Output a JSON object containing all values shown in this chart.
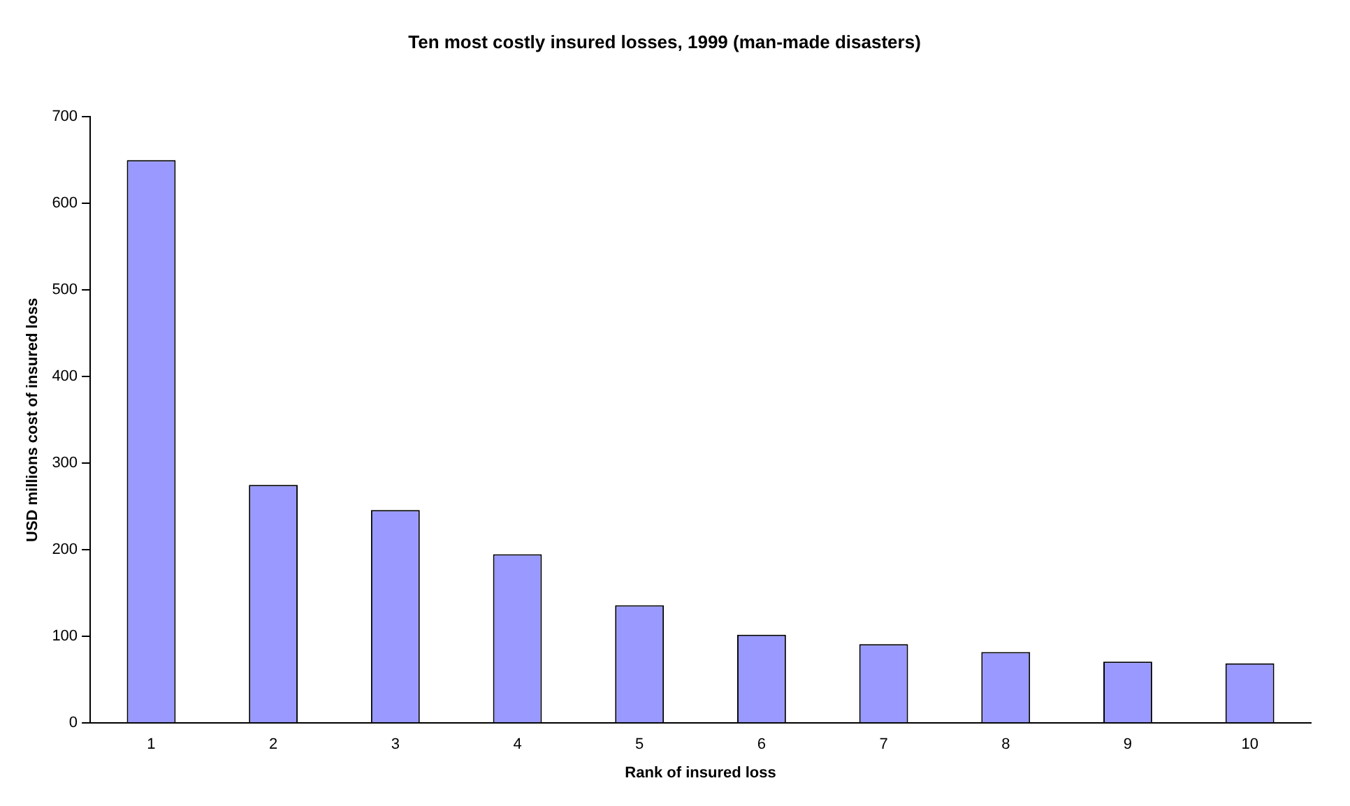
{
  "chart_data": {
    "type": "bar",
    "title": "Ten most costly insured losses, 1999 (man-made disasters)",
    "xlabel": "Rank of insured loss",
    "ylabel": "USD millions cost of insured loss",
    "categories": [
      "1",
      "2",
      "3",
      "4",
      "5",
      "6",
      "7",
      "8",
      "9",
      "10"
    ],
    "values": [
      650,
      275,
      246,
      195,
      136,
      102,
      91,
      82,
      71,
      69
    ],
    "color": "#9999ff",
    "ylim": [
      0,
      700
    ],
    "yticks": [
      0,
      100,
      200,
      300,
      400,
      500,
      600,
      700
    ],
    "grid": false,
    "legend": false
  }
}
